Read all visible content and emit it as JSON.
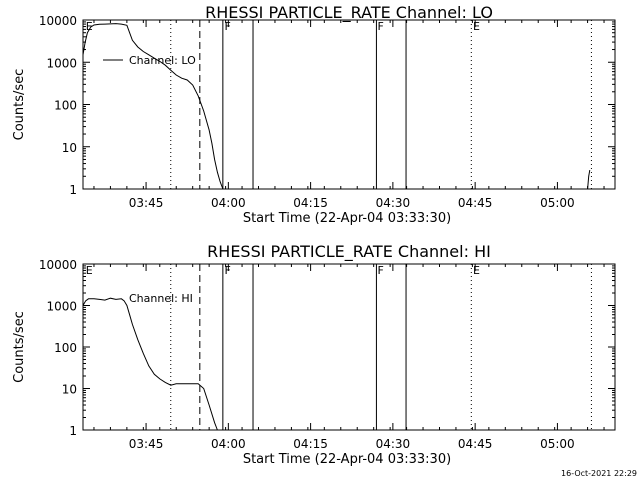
{
  "chart_data": [
    {
      "type": "line",
      "title": "RHESSI PARTICLE_RATE Channel: LO",
      "xlabel": "Start Time (22-Apr-04 03:33:30)",
      "ylabel": "Counts/sec",
      "yscale": "log",
      "ylim": [
        1,
        10000
      ],
      "xlim_minutes": [
        0,
        97
      ],
      "x_ticks": [
        {
          "m": 0,
          "label": ""
        },
        {
          "m": 11.5,
          "label": "03:45"
        },
        {
          "m": 26.5,
          "label": "04:00"
        },
        {
          "m": 41.5,
          "label": "04:15"
        },
        {
          "m": 56.5,
          "label": "04:30"
        },
        {
          "m": 71.5,
          "label": "04:45"
        },
        {
          "m": 86.5,
          "label": "05:00"
        }
      ],
      "y_ticks": [
        {
          "v": 1,
          "label": "1"
        },
        {
          "v": 10,
          "label": "10"
        },
        {
          "v": 100,
          "label": "100"
        },
        {
          "v": 1000,
          "label": "1000"
        },
        {
          "v": 10000,
          "label": "10000"
        }
      ],
      "legend": {
        "label": "Channel: LO",
        "placement": "upper-left"
      },
      "series": [
        {
          "x": [
            0,
            0.4,
            0.8,
            1.4,
            2,
            3,
            4,
            5,
            6,
            7,
            8,
            8.5,
            9,
            10,
            11,
            12,
            13,
            14,
            15,
            16,
            17,
            18,
            19,
            20,
            21,
            22,
            23,
            23.5,
            24,
            24.5,
            25,
            25.5
          ],
          "y": [
            1500,
            3000,
            5000,
            6800,
            7600,
            7900,
            8000,
            8100,
            8200,
            8000,
            7500,
            5000,
            3300,
            2300,
            1800,
            1500,
            1250,
            1050,
            850,
            650,
            500,
            420,
            380,
            290,
            160,
            70,
            25,
            12,
            5,
            2.5,
            1.5,
            1
          ]
        },
        {
          "x": [
            92,
            92.2,
            92.4
          ],
          "y": [
            1,
            2,
            2.8
          ]
        }
      ],
      "vertical_lines": [
        {
          "m": 16,
          "style": "dotted"
        },
        {
          "m": 21.3,
          "style": "dashed"
        },
        {
          "m": 25.5,
          "style": "solid"
        },
        {
          "m": 31,
          "style": "solid"
        },
        {
          "m": 53.5,
          "style": "solid"
        },
        {
          "m": 58.9,
          "style": "solid"
        },
        {
          "m": 70.8,
          "style": "dotted"
        },
        {
          "m": 92.7,
          "style": "dotted"
        }
      ],
      "markers": [
        {
          "m": 0.5,
          "label": "E"
        },
        {
          "m": 25.8,
          "label": "F"
        },
        {
          "m": 53.7,
          "label": "F"
        },
        {
          "m": 71.1,
          "label": "E"
        }
      ]
    },
    {
      "type": "line",
      "title": "RHESSI PARTICLE_RATE Channel: HI",
      "xlabel": "Start Time (22-Apr-04 03:33:30)",
      "ylabel": "Counts/sec",
      "yscale": "log",
      "ylim": [
        1,
        10000
      ],
      "xlim_minutes": [
        0,
        97
      ],
      "x_ticks": [
        {
          "m": 0,
          "label": ""
        },
        {
          "m": 11.5,
          "label": "03:45"
        },
        {
          "m": 26.5,
          "label": "04:00"
        },
        {
          "m": 41.5,
          "label": "04:15"
        },
        {
          "m": 56.5,
          "label": "04:30"
        },
        {
          "m": 71.5,
          "label": "04:45"
        },
        {
          "m": 86.5,
          "label": "05:00"
        }
      ],
      "y_ticks": [
        {
          "v": 1,
          "label": "1"
        },
        {
          "v": 10,
          "label": "10"
        },
        {
          "v": 100,
          "label": "100"
        },
        {
          "v": 1000,
          "label": "1000"
        },
        {
          "v": 10000,
          "label": "10000"
        }
      ],
      "legend": {
        "label": "Channel: HI",
        "placement": "upper-left"
      },
      "series": [
        {
          "x": [
            0,
            0.5,
            1,
            2,
            3,
            4,
            5,
            6,
            7,
            7.5,
            8,
            8.5,
            9,
            10,
            11,
            12,
            13,
            14,
            15,
            16,
            17,
            18,
            19,
            20,
            21,
            22,
            23,
            24,
            24.5
          ],
          "y": [
            1000,
            1300,
            1450,
            1450,
            1400,
            1350,
            1500,
            1400,
            1450,
            1300,
            1000,
            600,
            350,
            150,
            70,
            35,
            22,
            17,
            14,
            12,
            13,
            13,
            13,
            13,
            13,
            10,
            4,
            1.5,
            1
          ]
        }
      ],
      "vertical_lines": [
        {
          "m": 16,
          "style": "dotted"
        },
        {
          "m": 21.3,
          "style": "dashed"
        },
        {
          "m": 25.5,
          "style": "solid"
        },
        {
          "m": 31,
          "style": "solid"
        },
        {
          "m": 53.5,
          "style": "solid"
        },
        {
          "m": 58.9,
          "style": "solid"
        },
        {
          "m": 70.8,
          "style": "dotted"
        },
        {
          "m": 92.7,
          "style": "dotted"
        }
      ],
      "markers": [
        {
          "m": 0.5,
          "label": "E"
        },
        {
          "m": 25.8,
          "label": "F"
        },
        {
          "m": 53.7,
          "label": "F"
        },
        {
          "m": 71.1,
          "label": "E"
        }
      ]
    }
  ],
  "footer": {
    "timestamp": "16-Oct-2021 22:29"
  }
}
